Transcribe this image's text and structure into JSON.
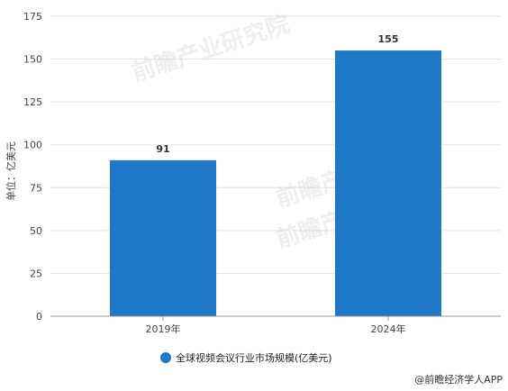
{
  "chart_data": {
    "type": "bar",
    "categories": [
      "2019年",
      "2024年"
    ],
    "values": [
      91,
      155
    ],
    "data_labels": [
      "91",
      "155"
    ],
    "ylabel": "单位：亿美元",
    "ylim": [
      0,
      175
    ],
    "yticks": [
      0,
      25,
      50,
      75,
      100,
      125,
      150,
      175
    ],
    "grid": true,
    "legend": "bottom-center",
    "series": [
      {
        "name": "全球视频会议行业市场规模(亿美元)",
        "values": [
          91,
          155
        ]
      }
    ],
    "bar_color": "#1f78c8"
  },
  "watermark_text": "前瞻产业研究院",
  "credit": "@前瞻经济学人APP"
}
